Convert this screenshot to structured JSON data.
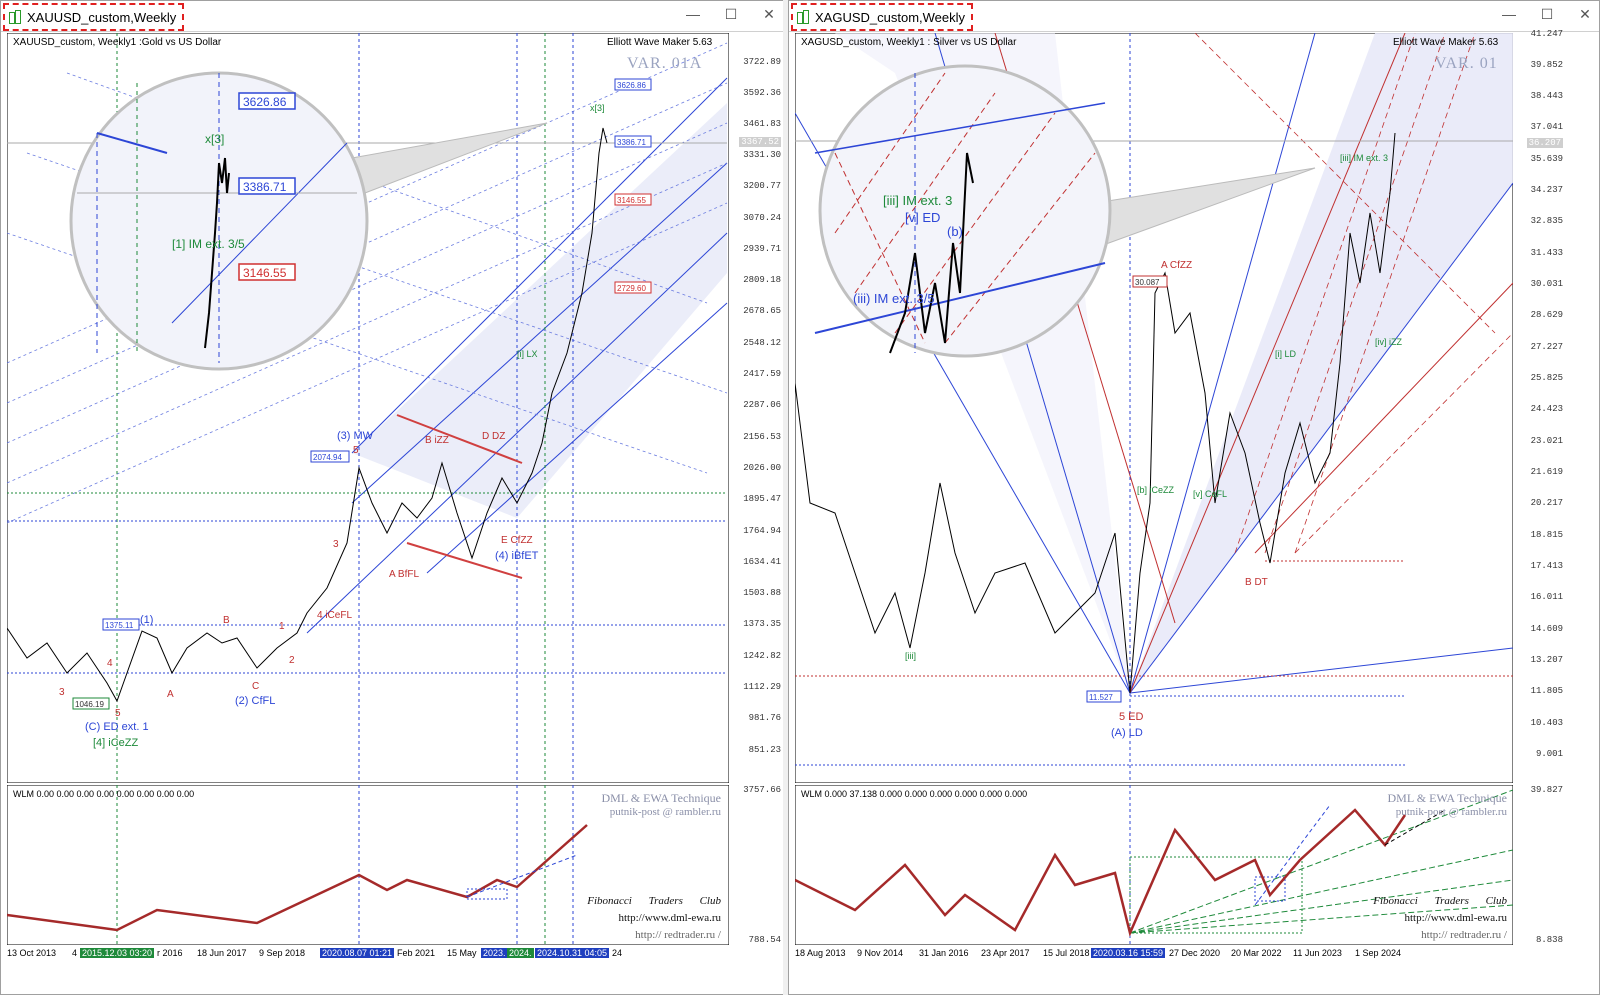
{
  "left": {
    "window_title": "XAUUSD_custom,Weekly",
    "header": "XAUUSD_custom, Weekly1 :Gold vs US Dollar",
    "ewm": "Elliott Wave Maker 5.63",
    "var": "VAR. 01A",
    "price_axis": [
      "3722.89",
      "3592.36",
      "3461.83",
      "3331.30",
      "3200.77",
      "3070.24",
      "2939.71",
      "2809.18",
      "2678.65",
      "2548.12",
      "2417.59",
      "2287.06",
      "2156.53",
      "2026.00",
      "1895.47",
      "1764.94",
      "1634.41",
      "1503.88",
      "1373.35",
      "1242.82",
      "1112.29",
      "981.76",
      "851.23"
    ],
    "price_tags": {
      "top": "3626.86",
      "current": "3386.71",
      "red1": "3146.55",
      "red2": "2729.60",
      "gray": "3367.52",
      "mid": "2074.94",
      "low": "1375.11",
      "bottom": "1046.19"
    },
    "zoom_tags": {
      "top": "3626.86",
      "mid": "3386.71",
      "red": "3146.55"
    },
    "wave_labels": {
      "x3": "x[3]",
      "im35": "[1] IM ext. 3/5",
      "mw": "(3) MW",
      "biz": "B iZZ",
      "ddz": "D DZ",
      "abfl": "A BfFL",
      "ecfzz": "E CfZZ",
      "ibfet": "(4) iBfET",
      "icefl": "4 iCeFL",
      "cfl": "(2) CfFL",
      "ced": "(C) ED ext. 1",
      "iceZZ": "[4] iCeZZ",
      "w1": "(1)",
      "B": "B",
      "A": "A",
      "C": "C",
      "n3": "3",
      "n4": "4",
      "n5": "5",
      "n1": "1",
      "n2": "2",
      "lx": "[i] LX"
    },
    "ind_axis_top": "3757.66",
    "ind_axis_bottom": "788.54",
    "ind_header": "WLM 0.00 0.00 0.00 0.00 0.00 0.00 0.00 0.00",
    "dml": "DML & EWA Technique",
    "email": "putnik-post @ rambler.ru",
    "ftc": "Fibonacci Traders Club",
    "url1": "http://www.dml-ewa.ru",
    "url2": "http:// redtrader.ru /",
    "dates": [
      "13 Oct 2013",
      "4",
      "2015.12.03 03:20",
      "r 2016",
      "18 Jun 2017",
      "9 Sep 2018",
      "2020.08.07 01:21",
      "Feb 2021",
      "15 May",
      "2023.",
      "2024.",
      "2024.10.31 04:05",
      "24"
    ]
  },
  "right": {
    "window_title": "XAGUSD_custom,Weekly",
    "header": "XAGUSD_custom, Weekly1 : Silver vs US Dollar",
    "ewm": "Elliott Wave Maker 5.63",
    "var": "VAR. 01",
    "price_axis": [
      "41.247",
      "39.852",
      "38.443",
      "37.041",
      "35.639",
      "34.237",
      "32.835",
      "31.433",
      "30.031",
      "28.629",
      "27.227",
      "25.825",
      "24.423",
      "23.021",
      "21.619",
      "20.217",
      "18.815",
      "17.413",
      "16.011",
      "14.609",
      "13.207",
      "11.805",
      "10.403",
      "9.001"
    ],
    "price_tags": {
      "current": "36.207",
      "mid": "30.087",
      "low": "11.527"
    },
    "wave_labels": {
      "iii3": "[iii] IM ext. 3",
      "ved": "[v] ED",
      "b": "(b)",
      "acfzz": "A CfZZ",
      "bdt": "B DT",
      "ed5": "5 ED",
      "ald": "(A) LD",
      "iceZZ": "[b] iCeZZ",
      "cefl": "[v] CeFL",
      "izz": "[iv] iZZ",
      "ld": "[i] LD",
      "iii": "[iii]"
    },
    "zoom_labels": {
      "a": "[iii] IM ext. 3",
      "b": "[v] ED",
      "c": "(b)",
      "d": "(iii) IM ext. 3/5"
    },
    "ind_axis_top": "39.827",
    "ind_axis_bottom": "8.838",
    "ind_header": "WLM 0.000 37.138 0.000 0.000 0.000 0.000 0.000 0.000",
    "dml": "DML & EWA Technique",
    "email": "putnik-post @ rambler.ru",
    "ftc": "Fibonacci Traders Club",
    "url1": "http://www.dml-ewa.ru",
    "url2": "http:// redtrader.ru /",
    "dates": [
      "18 Aug 2013",
      "9 Nov 2014",
      "31 Jan 2016",
      "23 Apr 2017",
      "15 Jul 2018",
      "2020.03.16 15:59",
      "27 Dec 2020",
      "20 Mar 2022",
      "11 Jun 2023",
      "1 Sep 2024"
    ]
  },
  "window_buttons": {
    "minimize": "—",
    "maximize": "☐",
    "close": "✕"
  }
}
